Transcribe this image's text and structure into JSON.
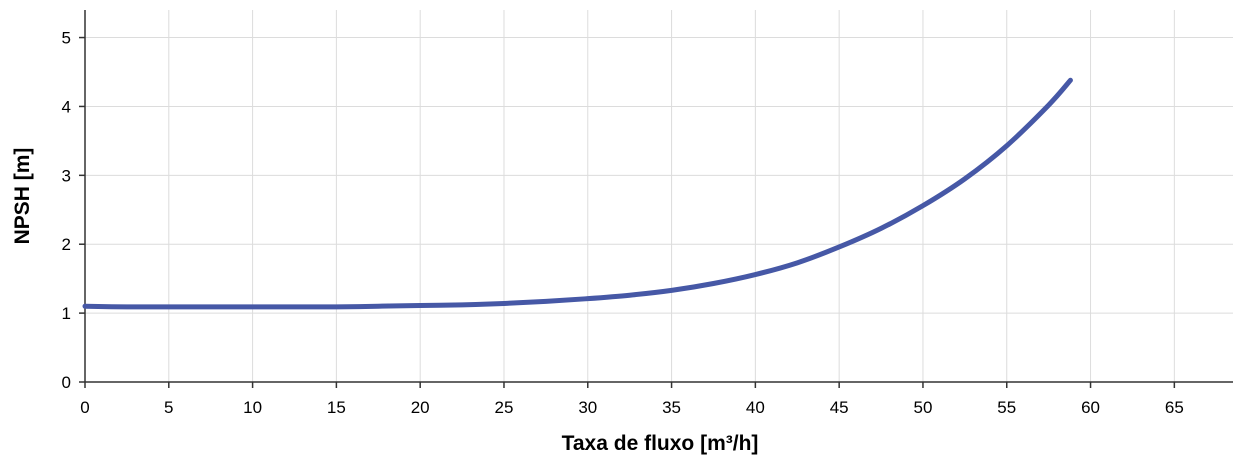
{
  "chart_data": {
    "type": "line",
    "title": "",
    "xlabel": "Taxa de fluxo [m³/h]",
    "ylabel": "NPSH [m]",
    "xlim": [
      0,
      68.5
    ],
    "ylim": [
      0,
      5.4
    ],
    "xticks": [
      0,
      5,
      10,
      15,
      20,
      25,
      30,
      35,
      40,
      45,
      50,
      55,
      60,
      65
    ],
    "yticks": [
      0,
      1,
      2,
      3,
      4,
      5
    ],
    "grid": true,
    "series": [
      {
        "color": "#4658a6",
        "x": [
          0,
          2.5,
          5,
          7.5,
          10,
          12.5,
          15,
          17.5,
          20,
          22.5,
          25,
          27.5,
          30,
          32.5,
          35,
          37.5,
          40,
          42.5,
          45,
          47.5,
          50,
          52.5,
          55,
          57.5,
          58.8
        ],
        "y": [
          1.1,
          1.09,
          1.09,
          1.09,
          1.09,
          1.09,
          1.09,
          1.1,
          1.11,
          1.12,
          1.14,
          1.17,
          1.21,
          1.26,
          1.33,
          1.43,
          1.56,
          1.73,
          1.96,
          2.23,
          2.56,
          2.95,
          3.43,
          4.02,
          4.38
        ]
      }
    ]
  }
}
